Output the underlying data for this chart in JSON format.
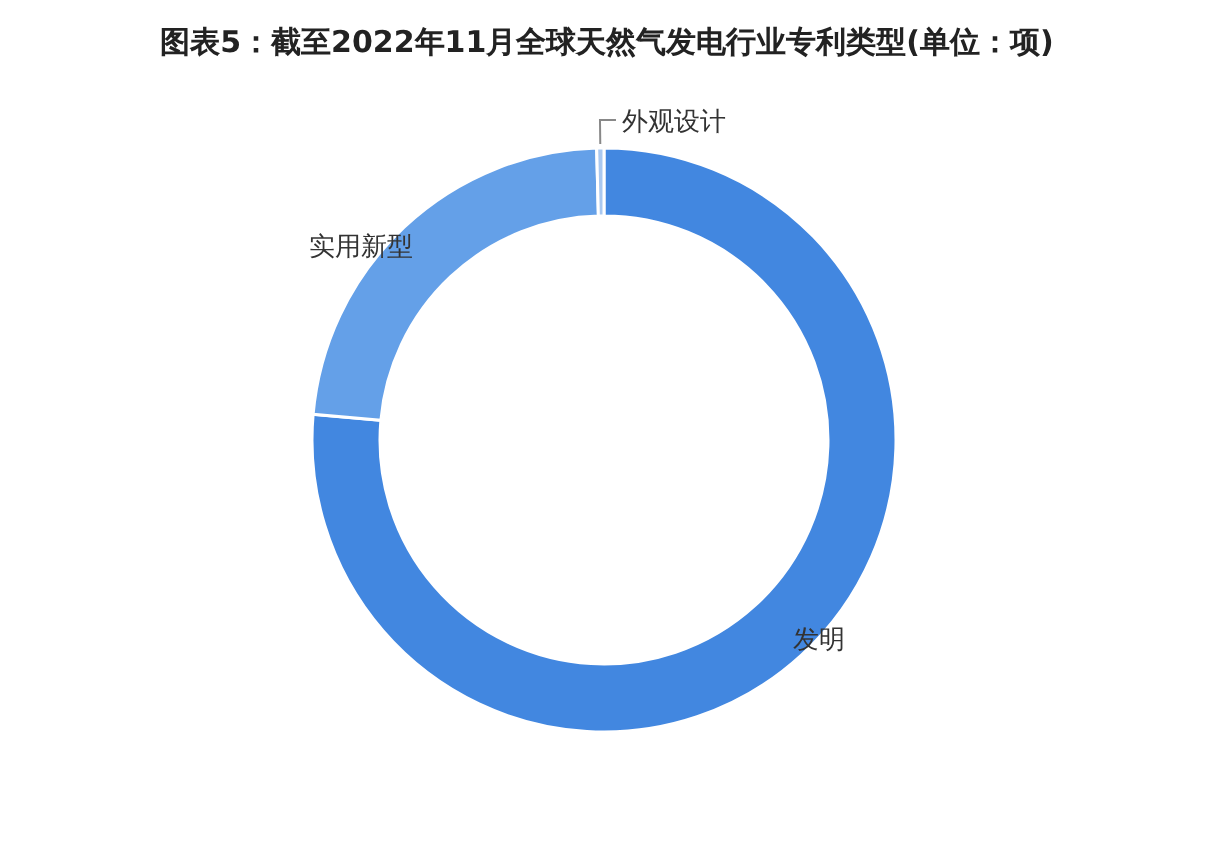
{
  "chart_data": {
    "type": "donut",
    "title": "图表5：截至2022年11月全球天然气发电行业专利类型(单位：项)",
    "categories": [
      "发明",
      "实用新型",
      "外观设计"
    ],
    "values": [
      76.4,
      23.2,
      0.4
    ],
    "colors": [
      "#4287e0",
      "#64a0e8",
      "#a9c8f0"
    ]
  }
}
